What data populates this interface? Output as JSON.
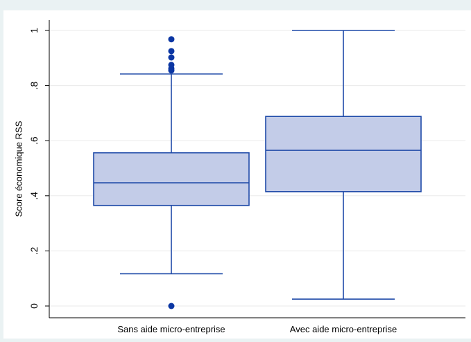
{
  "chart_data": {
    "type": "boxplot",
    "title": "",
    "xlabel": "",
    "ylabel": "Score économique RSS",
    "ylim": [
      0,
      1
    ],
    "yticks": [
      0,
      0.2,
      0.4,
      0.6,
      0.8,
      1
    ],
    "ytick_labels": [
      "0",
      ".2",
      ".4",
      ".6",
      ".8",
      "1"
    ],
    "grid": true,
    "legend": "none",
    "categories": [
      "Sans aide micro-entreprise",
      "Avec aide micro-entreprise"
    ],
    "boxes": [
      {
        "category": "Sans aide micro-entreprise",
        "whisker_low": 0.117,
        "q1": 0.365,
        "median": 0.447,
        "q3": 0.556,
        "whisker_high": 0.842,
        "outliers": [
          0.0,
          0.855,
          0.862,
          0.875,
          0.902,
          0.925,
          0.968
        ]
      },
      {
        "category": "Avec aide micro-entreprise",
        "whisker_low": 0.025,
        "q1": 0.415,
        "median": 0.565,
        "q3": 0.688,
        "whisker_high": 1.0,
        "outliers": []
      }
    ],
    "colors": {
      "box_fill": "#c3cce8",
      "box_line": "#1f4aa8",
      "outlier": "#0b36a3",
      "grid": "#eaeaea",
      "axis": "#000000"
    }
  }
}
